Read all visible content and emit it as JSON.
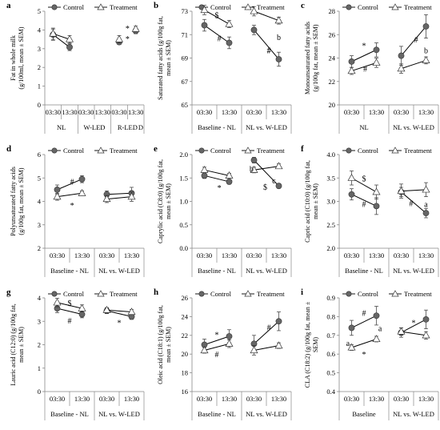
{
  "legend": {
    "control": "Control",
    "treatment": "Treatment"
  },
  "chart_data": [
    {
      "id": "a",
      "panel_label": "a",
      "type": "line",
      "ylabel": [
        "Fat in whole milk",
        "(g/100ml, mean ± SEM)"
      ],
      "ylim": [
        0,
        5
      ],
      "yticks": [
        "0",
        "1",
        "2",
        "3",
        "4",
        "5"
      ],
      "x": [
        "03:30",
        "13:30",
        "03:30",
        "13:30",
        "03:30",
        "13:30"
      ],
      "groups": [
        "NL",
        "W-LED",
        "R-LED"
      ],
      "group_breaks": [
        2,
        4
      ],
      "extra_label": "D",
      "series": [
        {
          "name": "Control",
          "marker": "circle",
          "segments": [
            [
              0,
              1
            ],
            [
              2,
              3
            ]
          ],
          "values": [
            3.75,
            3.08,
            null,
            null,
            3.35,
            3.95
          ],
          "err": [
            0.3,
            0.18,
            null,
            null,
            0.12,
            0.15
          ]
        },
        {
          "name": "Treatment",
          "marker": "triangle",
          "segments": [
            [
              0,
              1
            ],
            [
              2,
              3
            ]
          ],
          "values": [
            3.8,
            3.5,
            null,
            null,
            3.5,
            4.05
          ],
          "err": [
            0.3,
            0.2,
            null,
            null,
            0.2,
            0.15
          ]
        }
      ],
      "annotations": [
        {
          "text": "*",
          "x": 4.5,
          "y": 4.1
        },
        {
          "text": "*",
          "x": 4.5,
          "y": 3.55
        }
      ]
    },
    {
      "id": "b",
      "panel_label": "b",
      "type": "line",
      "ylabel": [
        "Saturated fatty acids (g/100g fat,",
        "mean ± SEM)"
      ],
      "ylim": [
        65,
        73
      ],
      "yticks": [
        "65",
        "67",
        "69",
        "71",
        "73"
      ],
      "x": [
        "03:30",
        "13:30",
        "03:30",
        "13:30"
      ],
      "groups": [
        "Baseline - NL",
        "NL vs. W-LED"
      ],
      "group_breaks": [
        2
      ],
      "series": [
        {
          "name": "Control",
          "marker": "circle",
          "segments": [
            [
              0,
              1
            ],
            [
              2,
              3
            ]
          ],
          "values": [
            71.8,
            70.3,
            71.4,
            68.9
          ],
          "err": [
            0.5,
            0.5,
            0.4,
            0.6
          ]
        },
        {
          "name": "Treatment",
          "marker": "triangle",
          "segments": [
            [
              0,
              1
            ],
            [
              2,
              3
            ]
          ],
          "values": [
            73.1,
            71.9,
            73.0,
            72.2
          ],
          "err": [
            0.4,
            0.3,
            0.4,
            0.3
          ]
        }
      ],
      "annotations": [
        {
          "text": "$",
          "x": 0.5,
          "y": 72.7
        },
        {
          "text": "#",
          "x": 0.6,
          "y": 70.7
        },
        {
          "text": "b",
          "x": 3,
          "y": 70.8
        },
        {
          "text": "#",
          "x": 2.6,
          "y": 69.7,
          "bold": true
        }
      ]
    },
    {
      "id": "c",
      "panel_label": "c",
      "type": "line",
      "ylabel": [
        "Monounsaturated fatty acids",
        "(g/100g fat, mean ± SEM)"
      ],
      "ylim": [
        20,
        28
      ],
      "yticks": [
        "20",
        "22",
        "24",
        "26",
        "28"
      ],
      "x": [
        "03:30",
        "13:30",
        "03:30",
        "13:30"
      ],
      "groups": [
        "NL",
        "NL vs. W-LED"
      ],
      "group_breaks": [
        2
      ],
      "series": [
        {
          "name": "Control",
          "marker": "circle",
          "segments": [
            [
              0,
              1
            ],
            [
              2,
              3
            ]
          ],
          "values": [
            23.7,
            24.7,
            24.2,
            26.7
          ],
          "err": [
            0.5,
            0.6,
            0.8,
            1.0
          ]
        },
        {
          "name": "Treatment",
          "marker": "triangle",
          "segments": [
            [
              0,
              1
            ],
            [
              2,
              3
            ]
          ],
          "values": [
            22.9,
            23.6,
            23.1,
            23.8
          ],
          "err": [
            0.3,
            0.4,
            0.4,
            0.3
          ]
        }
      ],
      "annotations": [
        {
          "text": "*",
          "x": 0.5,
          "y": 25.1
        },
        {
          "text": "#",
          "x": 0.55,
          "y": 23.1
        },
        {
          "text": "#",
          "x": 2.6,
          "y": 25.6
        },
        {
          "text": "b",
          "x": 3,
          "y": 24.7
        }
      ]
    },
    {
      "id": "d",
      "panel_label": "d",
      "type": "line",
      "ylabel": [
        "Polyunsaturated fatty acids",
        "(g/100g fat, mean ± SEM)"
      ],
      "ylim": [
        2,
        6
      ],
      "yticks": [
        "2",
        "3",
        "4",
        "5",
        "6"
      ],
      "x": [
        "03:30",
        "13:30",
        "03:30",
        "13:30"
      ],
      "groups": [
        "Baseline - NL",
        "NL vs. W-LED"
      ],
      "group_breaks": [
        2
      ],
      "series": [
        {
          "name": "Control",
          "marker": "circle",
          "segments": [
            [
              0,
              1
            ],
            [
              2,
              3
            ]
          ],
          "values": [
            4.5,
            4.95,
            4.3,
            4.35
          ],
          "err": [
            0.2,
            0.15,
            0.15,
            0.25
          ]
        },
        {
          "name": "Treatment",
          "marker": "triangle",
          "segments": [
            [
              0,
              1
            ],
            [
              2,
              3
            ]
          ],
          "values": [
            4.2,
            4.35,
            4.1,
            4.2
          ],
          "err": [
            0.15,
            0.1,
            0.15,
            0.2
          ]
        }
      ],
      "annotations": [
        {
          "text": "#",
          "x": 0.6,
          "y": 4.85
        },
        {
          "text": "*",
          "x": 0.6,
          "y": 3.85
        }
      ]
    },
    {
      "id": "e",
      "panel_label": "e",
      "type": "line",
      "ylabel": [
        "Caprylic acid (C8:0) (g/100g fat,",
        "mean ± SEM)"
      ],
      "ylim": [
        0,
        2.0
      ],
      "yticks": [
        "0.0",
        "0.5",
        "1.0",
        "1.5",
        "2.0"
      ],
      "x": [
        "03:30",
        "13:30",
        "03:30",
        "13:30"
      ],
      "groups": [
        "Baseline - NL",
        "NL vs. W-LED"
      ],
      "group_breaks": [
        2
      ],
      "series": [
        {
          "name": "Control",
          "marker": "circle",
          "segments": [
            [
              0,
              1
            ],
            [
              2,
              3
            ]
          ],
          "values": [
            1.55,
            1.42,
            1.88,
            1.33
          ],
          "err": [
            0.06,
            0.05,
            0.06,
            0.05
          ]
        },
        {
          "name": "Treatment",
          "marker": "triangle",
          "segments": [
            [
              0,
              1
            ],
            [
              2,
              3
            ]
          ],
          "values": [
            1.67,
            1.55,
            1.67,
            1.75
          ],
          "err": [
            0.06,
            0.05,
            0.06,
            0.05
          ]
        }
      ],
      "annotations": [
        {
          "text": "*",
          "x": 0.6,
          "y": 1.3
        },
        {
          "text": "b",
          "x": 1.9,
          "y": 1.7
        },
        {
          "text": "c",
          "x": 2.8,
          "y": 1.45
        },
        {
          "text": "$",
          "x": 2.45,
          "y": 1.32
        }
      ]
    },
    {
      "id": "f",
      "panel_label": "f",
      "type": "line",
      "ylabel": [
        "Capric acid (C10:0) (g/100g fat,",
        "mean ± SEM)"
      ],
      "ylim": [
        2.0,
        4.0
      ],
      "yticks": [
        "2.0",
        "2.5",
        "3.0",
        "3.5",
        "4.0"
      ],
      "x": [
        "03:30",
        "13:30",
        "03:30",
        "13:30"
      ],
      "groups": [
        "Baseline - NL",
        "NL vs. W-LED"
      ],
      "group_breaks": [
        2
      ],
      "series": [
        {
          "name": "Control",
          "marker": "circle",
          "segments": [
            [
              0,
              1
            ],
            [
              2,
              3
            ]
          ],
          "values": [
            3.15,
            2.9,
            3.2,
            2.75
          ],
          "err": [
            0.12,
            0.18,
            0.1,
            0.1
          ]
        },
        {
          "name": "Treatment",
          "marker": "triangle",
          "segments": [
            [
              0,
              1
            ],
            [
              2,
              3
            ]
          ],
          "values": [
            3.5,
            3.2,
            3.22,
            3.25
          ],
          "err": [
            0.15,
            0.15,
            0.15,
            0.15
          ]
        }
      ],
      "annotations": [
        {
          "text": "$",
          "x": 0.5,
          "y": 3.5
        },
        {
          "text": "#",
          "x": 0.5,
          "y": 2.95
        },
        {
          "text": "#",
          "x": 2.4,
          "y": 2.97
        },
        {
          "text": "a",
          "x": 3,
          "y": 2.95
        }
      ]
    },
    {
      "id": "g",
      "panel_label": "g",
      "type": "line",
      "ylabel": [
        "Lauric acid (C12:0) (g/100g fat,",
        "mean ± SEM)"
      ],
      "ylim": [
        0,
        4
      ],
      "yticks": [
        "0",
        "1",
        "2",
        "3",
        "4"
      ],
      "x": [
        "03:30",
        "13:30",
        "03:30",
        "13:30"
      ],
      "groups": [
        "Baseline - NL",
        "NL vs. W-LED"
      ],
      "group_breaks": [
        2
      ],
      "series": [
        {
          "name": "Control",
          "marker": "circle",
          "segments": [
            [
              0,
              1
            ],
            [
              2,
              3
            ]
          ],
          "values": [
            3.55,
            3.3,
            3.45,
            3.2
          ],
          "err": [
            0.18,
            0.15,
            0.12,
            0.12
          ]
        },
        {
          "name": "Treatment",
          "marker": "triangle",
          "segments": [
            [
              0,
              1
            ],
            [
              2,
              3
            ]
          ],
          "values": [
            3.8,
            3.55,
            3.48,
            3.4
          ],
          "err": [
            0.18,
            0.15,
            0.1,
            0.1
          ]
        }
      ],
      "annotations": [
        {
          "text": "$",
          "x": 0.5,
          "y": 3.8
        },
        {
          "text": "#",
          "x": 0.5,
          "y": 3.05
        },
        {
          "text": "*",
          "x": 2.5,
          "y": 2.95
        }
      ]
    },
    {
      "id": "h",
      "panel_label": "h",
      "type": "line",
      "ylabel": [
        "Oleic acid (C18:1) (g/100g fat,",
        "mean ± SEM)"
      ],
      "ylim": [
        16,
        26
      ],
      "yticks": [
        "16",
        "18",
        "20",
        "22",
        "24",
        "26"
      ],
      "x": [
        "03:30",
        "13:30",
        "03:30",
        "13:30"
      ],
      "groups": [
        "Baseline - NL",
        "NL vs. W-LED"
      ],
      "group_breaks": [
        2
      ],
      "series": [
        {
          "name": "Control",
          "marker": "circle",
          "segments": [
            [
              0,
              1
            ],
            [
              2,
              3
            ]
          ],
          "values": [
            21.0,
            21.9,
            21.1,
            23.5
          ],
          "err": [
            0.6,
            0.7,
            0.9,
            1.0
          ]
        },
        {
          "name": "Treatment",
          "marker": "triangle",
          "segments": [
            [
              0,
              1
            ],
            [
              2,
              3
            ]
          ],
          "values": [
            20.4,
            21.1,
            20.4,
            20.9
          ],
          "err": [
            0.3,
            0.4,
            0.5,
            0.3
          ]
        }
      ],
      "annotations": [
        {
          "text": "*",
          "x": 0.5,
          "y": 22.1
        },
        {
          "text": "#",
          "x": 0.5,
          "y": 20.0
        },
        {
          "text": "#",
          "x": 2.6,
          "y": 22.9
        }
      ]
    },
    {
      "id": "i",
      "panel_label": "i",
      "type": "line",
      "ylabel": [
        "CLA (C18:2) (g/100g fat, mean ±",
        "SEM)"
      ],
      "ylim": [
        0.4,
        0.9
      ],
      "yticks": [
        "0.4",
        "0.5",
        "0.6",
        "0.7",
        "0.8",
        "0.9"
      ],
      "x": [
        "03:30",
        "13:30",
        "03:30",
        "13:30"
      ],
      "groups": [
        "Baseline",
        "NL vs. W-LED"
      ],
      "group_breaks": [
        2
      ],
      "series": [
        {
          "name": "Control",
          "marker": "circle",
          "segments": [
            [
              0,
              1
            ],
            [
              2,
              3
            ]
          ],
          "values": [
            0.74,
            0.805,
            0.715,
            0.785
          ],
          "err": [
            0.04,
            0.05,
            0.025,
            0.05
          ]
        },
        {
          "name": "Treatment",
          "marker": "triangle",
          "segments": [
            [
              0,
              1
            ],
            [
              2,
              3
            ]
          ],
          "values": [
            0.635,
            0.68,
            0.72,
            0.7
          ],
          "err": [
            0.015,
            0.015,
            0.02,
            0.02
          ]
        }
      ],
      "annotations": [
        {
          "text": "a",
          "x": -0.15,
          "y": 0.66
        },
        {
          "text": "a",
          "x": 1.15,
          "y": 0.74
        },
        {
          "text": "*",
          "x": 0.5,
          "y": 0.6
        },
        {
          "text": "#",
          "x": 0.5,
          "y": 0.82
        },
        {
          "text": "*",
          "x": 2.5,
          "y": 0.77
        }
      ]
    }
  ]
}
